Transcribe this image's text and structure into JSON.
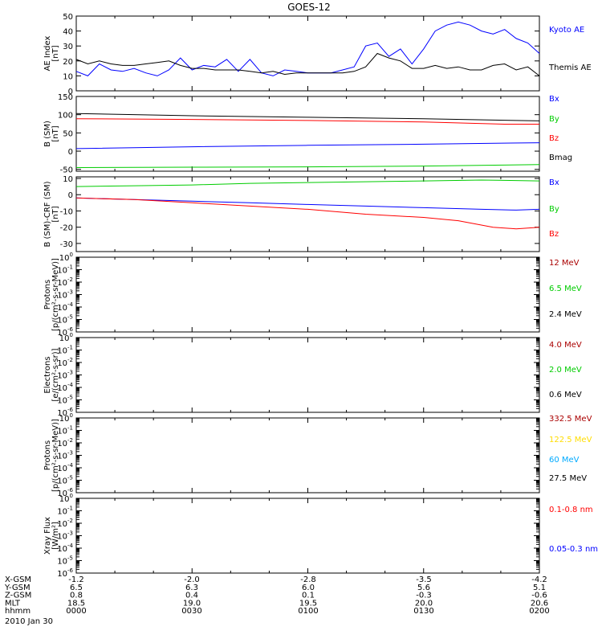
{
  "title": "GOES-12",
  "date_label": "2010 Jan 30",
  "ephemeris": {
    "rows": [
      {
        "label": "X-GSM",
        "values": [
          "-1.2",
          "-2.0",
          "-2.8",
          "-3.5",
          "-4.2"
        ]
      },
      {
        "label": "Y-GSM",
        "values": [
          "6.5",
          "6.3",
          "6.0",
          "5.6",
          "5.1"
        ]
      },
      {
        "label": "Z-GSM",
        "values": [
          "0.8",
          "0.4",
          "0.1",
          "-0.3",
          "-0.6"
        ]
      },
      {
        "label": "MLT",
        "values": [
          "18.5",
          "19.0",
          "19.5",
          "20.0",
          "20.6"
        ]
      },
      {
        "label": "hhmm",
        "values": [
          "0000",
          "0030",
          "0100",
          "0130",
          "0200"
        ]
      }
    ]
  },
  "chart_data": [
    {
      "type": "line",
      "ylabel": [
        "AE Index",
        "[nT]"
      ],
      "ylim": [
        0,
        50
      ],
      "yticks": [
        0,
        10,
        20,
        30,
        40,
        50
      ],
      "xlim_hours": [
        0,
        2
      ],
      "series": [
        {
          "name": "Kyoto AE",
          "color": "#0000ff",
          "x": [
            0,
            0.05,
            0.1,
            0.15,
            0.2,
            0.25,
            0.3,
            0.35,
            0.4,
            0.45,
            0.5,
            0.55,
            0.6,
            0.65,
            0.7,
            0.75,
            0.8,
            0.85,
            0.9,
            0.95,
            1.0,
            1.05,
            1.1,
            1.15,
            1.2,
            1.25,
            1.3,
            1.35,
            1.4,
            1.45,
            1.5,
            1.55,
            1.6,
            1.65,
            1.7,
            1.75,
            1.8,
            1.85,
            1.9,
            1.95,
            2.0
          ],
          "y": [
            13,
            10,
            18,
            14,
            13,
            15,
            12,
            10,
            14,
            22,
            14,
            17,
            16,
            21,
            13,
            21,
            12,
            10,
            14,
            13,
            12,
            12,
            12,
            14,
            16,
            30,
            32,
            23,
            28,
            18,
            28,
            40,
            44,
            46,
            44,
            40,
            38,
            41,
            35,
            32,
            25
          ]
        },
        {
          "name": "Themis AE",
          "color": "#000000",
          "x": [
            0,
            0.05,
            0.1,
            0.15,
            0.2,
            0.25,
            0.3,
            0.35,
            0.4,
            0.45,
            0.5,
            0.55,
            0.6,
            0.65,
            0.7,
            0.75,
            0.8,
            0.85,
            0.9,
            0.95,
            1.0,
            1.05,
            1.1,
            1.15,
            1.2,
            1.25,
            1.3,
            1.35,
            1.4,
            1.45,
            1.5,
            1.55,
            1.6,
            1.65,
            1.7,
            1.75,
            1.8,
            1.85,
            1.9,
            1.95,
            2.0
          ],
          "y": [
            21,
            18,
            20,
            18,
            17,
            17,
            18,
            19,
            20,
            17,
            15,
            15,
            14,
            14,
            14,
            13,
            12,
            13,
            11,
            12,
            12,
            12,
            12,
            12,
            13,
            16,
            25,
            22,
            20,
            15,
            15,
            17,
            15,
            16,
            14,
            14,
            17,
            18,
            14,
            16,
            10
          ]
        }
      ]
    },
    {
      "type": "line",
      "ylabel": [
        "B (SM)",
        "[nT]"
      ],
      "ylim": [
        -55,
        150
      ],
      "yticks": [
        -50,
        0,
        50,
        100,
        150
      ],
      "xlim_hours": [
        0,
        2
      ],
      "series": [
        {
          "name": "Bx",
          "color": "#0000ff",
          "x": [
            0,
            0.5,
            1.0,
            1.5,
            2.0
          ],
          "y": [
            7,
            12,
            16,
            19,
            23
          ]
        },
        {
          "name": "By",
          "color": "#00cc00",
          "x": [
            0,
            0.5,
            1.0,
            1.5,
            2.0
          ],
          "y": [
            -45,
            -44,
            -43,
            -41,
            -37
          ]
        },
        {
          "name": "Bz",
          "color": "#ff0000",
          "x": [
            0,
            0.5,
            1.0,
            1.5,
            1.85,
            2.0
          ],
          "y": [
            89,
            87,
            84,
            80,
            74,
            74
          ]
        },
        {
          "name": "Bmag",
          "color": "#000000",
          "x": [
            0,
            0.5,
            1.0,
            1.5,
            2.0
          ],
          "y": [
            103,
            97,
            93,
            89,
            83
          ]
        }
      ]
    },
    {
      "type": "line",
      "ylabel": [
        "B (SM)-CRF (SM)",
        "[nT]"
      ],
      "ylim": [
        -35,
        11
      ],
      "yticks": [
        -30,
        -20,
        -10,
        0,
        10
      ],
      "xlim_hours": [
        0,
        2
      ],
      "series": [
        {
          "name": "Bx",
          "color": "#0000ff",
          "x": [
            0,
            0.25,
            0.5,
            0.75,
            1.0,
            1.25,
            1.5,
            1.75,
            1.9,
            2.0
          ],
          "y": [
            -2,
            -3,
            -4,
            -5,
            -6,
            -7,
            -8,
            -9,
            -9.5,
            -9
          ]
        },
        {
          "name": "By",
          "color": "#00cc00",
          "x": [
            0,
            0.25,
            0.5,
            0.75,
            1.0,
            1.25,
            1.5,
            1.75,
            2.0
          ],
          "y": [
            5,
            5.5,
            6,
            7,
            7.5,
            8,
            8.5,
            9,
            8.5
          ]
        },
        {
          "name": "Bz",
          "color": "#ff0000",
          "x": [
            0,
            0.25,
            0.5,
            0.75,
            1.0,
            1.25,
            1.5,
            1.65,
            1.8,
            1.9,
            2.0
          ],
          "y": [
            -2,
            -3,
            -5,
            -7,
            -9,
            -12,
            -14,
            -16,
            -20,
            -21,
            -20
          ]
        }
      ]
    },
    {
      "type": "line",
      "scale": "log",
      "ylabel": [
        "Protons",
        "[p/(cm²-s-sr-MeV)]"
      ],
      "ylim": [
        1e-06,
        1
      ],
      "yticks": [
        "1e-6",
        "1e-5",
        "1e-4",
        "1e-3",
        "1e-2",
        "1e-1",
        "1e0"
      ],
      "xlim_hours": [
        0,
        2
      ],
      "series": [
        {
          "name": "12 MeV",
          "color": "#aa0000",
          "x": [],
          "y": []
        },
        {
          "name": "6.5 MeV",
          "color": "#00cc00",
          "x": [],
          "y": []
        },
        {
          "name": "2.4 MeV",
          "color": "#000000",
          "x": [],
          "y": []
        }
      ]
    },
    {
      "type": "line",
      "scale": "log",
      "ylabel": [
        "Electrons",
        "[e/(cm²-s-sr)]"
      ],
      "ylim": [
        1e-06,
        1
      ],
      "yticks": [
        "1e-6",
        "1e-5",
        "1e-4",
        "1e-3",
        "1e-2",
        "1e-1",
        "1e0"
      ],
      "xlim_hours": [
        0,
        2
      ],
      "series": [
        {
          "name": "4.0 MeV",
          "color": "#aa0000",
          "x": [],
          "y": []
        },
        {
          "name": "2.0 MeV",
          "color": "#00cc00",
          "x": [],
          "y": []
        },
        {
          "name": "0.6 MeV",
          "color": "#000000",
          "x": [],
          "y": []
        }
      ]
    },
    {
      "type": "line",
      "scale": "log",
      "ylabel": [
        "Protons",
        "[p/(cm²-s-sr-MeV)]"
      ],
      "ylim": [
        1e-06,
        1
      ],
      "yticks": [
        "1e-6",
        "1e-5",
        "1e-4",
        "1e-3",
        "1e-2",
        "1e-1",
        "1e0"
      ],
      "xlim_hours": [
        0,
        2
      ],
      "series": [
        {
          "name": "332.5 MeV",
          "color": "#aa0000",
          "x": [],
          "y": []
        },
        {
          "name": "122.5 MeV",
          "color": "#ffdd00",
          "x": [],
          "y": []
        },
        {
          "name": "60 MeV",
          "color": "#00aaff",
          "x": [],
          "y": []
        },
        {
          "name": "27.5 MeV",
          "color": "#000000",
          "x": [],
          "y": []
        }
      ]
    },
    {
      "type": "line",
      "scale": "log",
      "ylabel": [
        "Xray Flux",
        "[W/m²]"
      ],
      "ylim": [
        1e-06,
        1
      ],
      "yticks": [
        "1e-6",
        "1e-5",
        "1e-4",
        "1e-3",
        "1e-2",
        "1e-1",
        "1e0"
      ],
      "xlim_hours": [
        0,
        2
      ],
      "series": [
        {
          "name": "0.1-0.8 nm",
          "color": "#ff0000",
          "x": [],
          "y": []
        },
        {
          "name": "0.05-0.3 nm",
          "color": "#0000ff",
          "x": [],
          "y": []
        }
      ]
    }
  ]
}
